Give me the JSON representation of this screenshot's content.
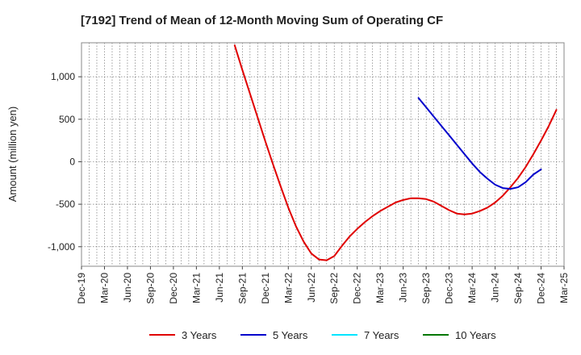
{
  "chart_data": {
    "type": "line",
    "title": "[7192]  Trend of Mean of 12-Month Moving Sum of Operating CF",
    "ylabel": "Amount (million yen)",
    "xlabel": "",
    "ylim": [
      -1230,
      1400
    ],
    "yticks": [
      1000,
      500,
      0,
      -500,
      -1000
    ],
    "ytick_labels": [
      "1,000",
      "500",
      "0",
      "-500",
      "-1,000"
    ],
    "x_start": "Dec-19",
    "x_end": "Mar-25",
    "x_ticks": [
      "Dec-19",
      "Mar-20",
      "Jun-20",
      "Sep-20",
      "Dec-20",
      "Mar-21",
      "Jun-21",
      "Sep-21",
      "Dec-21",
      "Mar-22",
      "Jun-22",
      "Sep-22",
      "Dec-22",
      "Mar-23",
      "Jun-23",
      "Sep-23",
      "Dec-23",
      "Mar-24",
      "Jun-24",
      "Sep-24",
      "Dec-24",
      "Mar-25"
    ],
    "grid": true,
    "legend_position": "bottom",
    "series": [
      {
        "name": "3 Years",
        "color": "#e00000",
        "start": "Aug-21",
        "values": [
          1370,
          1080,
          800,
          520,
          240,
          -30,
          -290,
          -540,
          -760,
          -940,
          -1080,
          -1150,
          -1160,
          -1110,
          -990,
          -880,
          -790,
          -710,
          -640,
          -580,
          -530,
          -480,
          -450,
          -430,
          -430,
          -440,
          -470,
          -520,
          -570,
          -610,
          -620,
          -610,
          -580,
          -540,
          -480,
          -400,
          -300,
          -190,
          -60,
          90,
          250,
          420,
          610
        ]
      },
      {
        "name": "5 Years",
        "color": "#0000cc",
        "start": "Aug-23",
        "values": [
          750,
          640,
          530,
          420,
          310,
          200,
          90,
          -20,
          -120,
          -200,
          -270,
          -310,
          -320,
          -300,
          -240,
          -150,
          -90
        ]
      },
      {
        "name": "7 Years",
        "color": "#00e5ff",
        "start": "",
        "values": []
      },
      {
        "name": "10 Years",
        "color": "#007700",
        "start": "",
        "values": []
      }
    ]
  }
}
